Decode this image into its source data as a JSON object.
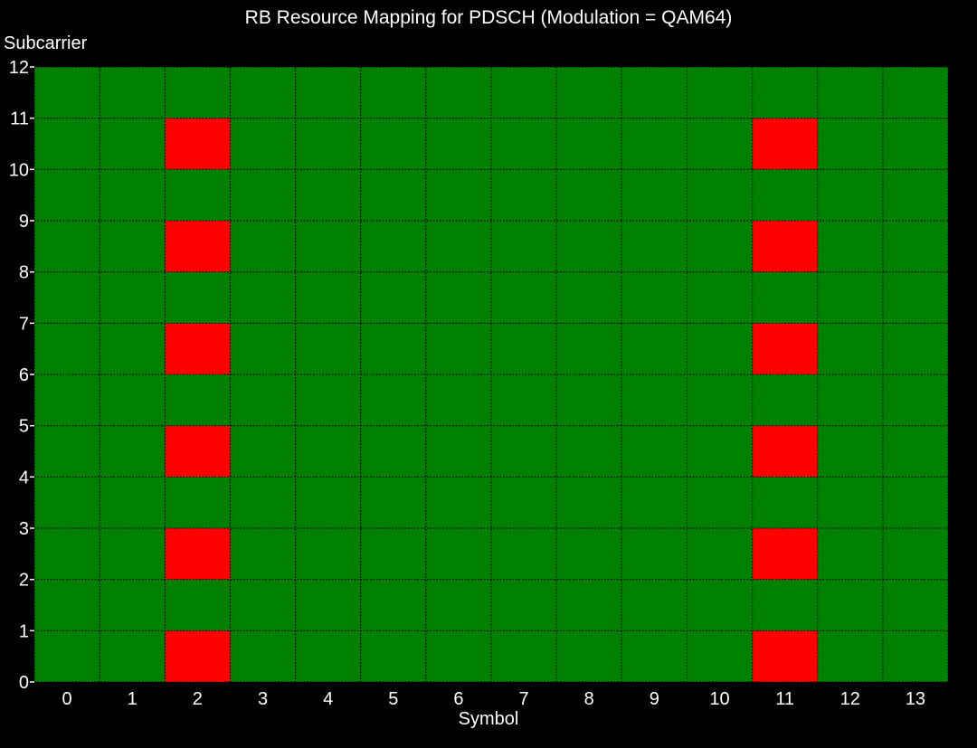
{
  "chart_data": {
    "type": "heatmap",
    "title": "RB Resource Mapping for PDSCH (Modulation = QAM64)",
    "xlabel": "Symbol",
    "ylabel": "Subcarrier",
    "x_ticks": [
      "0",
      "1",
      "2",
      "3",
      "4",
      "5",
      "6",
      "7",
      "8",
      "9",
      "10",
      "11",
      "12",
      "13"
    ],
    "y_ticks": [
      "0",
      "1",
      "2",
      "3",
      "4",
      "5",
      "6",
      "7",
      "8",
      "9",
      "10",
      "11",
      "12"
    ],
    "xlim": [
      0,
      14
    ],
    "ylim": [
      0,
      12
    ],
    "grid": true,
    "colors": {
      "background": "#000000",
      "data": "#008000",
      "reference": "#ff0000",
      "grid": "#000000",
      "text": "#ffffff"
    },
    "default_value": "data",
    "red_cells": [
      {
        "symbol": 2,
        "subcarrier": 0
      },
      {
        "symbol": 2,
        "subcarrier": 2
      },
      {
        "symbol": 2,
        "subcarrier": 4
      },
      {
        "symbol": 2,
        "subcarrier": 6
      },
      {
        "symbol": 2,
        "subcarrier": 8
      },
      {
        "symbol": 2,
        "subcarrier": 10
      },
      {
        "symbol": 11,
        "subcarrier": 0
      },
      {
        "symbol": 11,
        "subcarrier": 2
      },
      {
        "symbol": 11,
        "subcarrier": 4
      },
      {
        "symbol": 11,
        "subcarrier": 6
      },
      {
        "symbol": 11,
        "subcarrier": 8
      },
      {
        "symbol": 11,
        "subcarrier": 10
      }
    ]
  }
}
